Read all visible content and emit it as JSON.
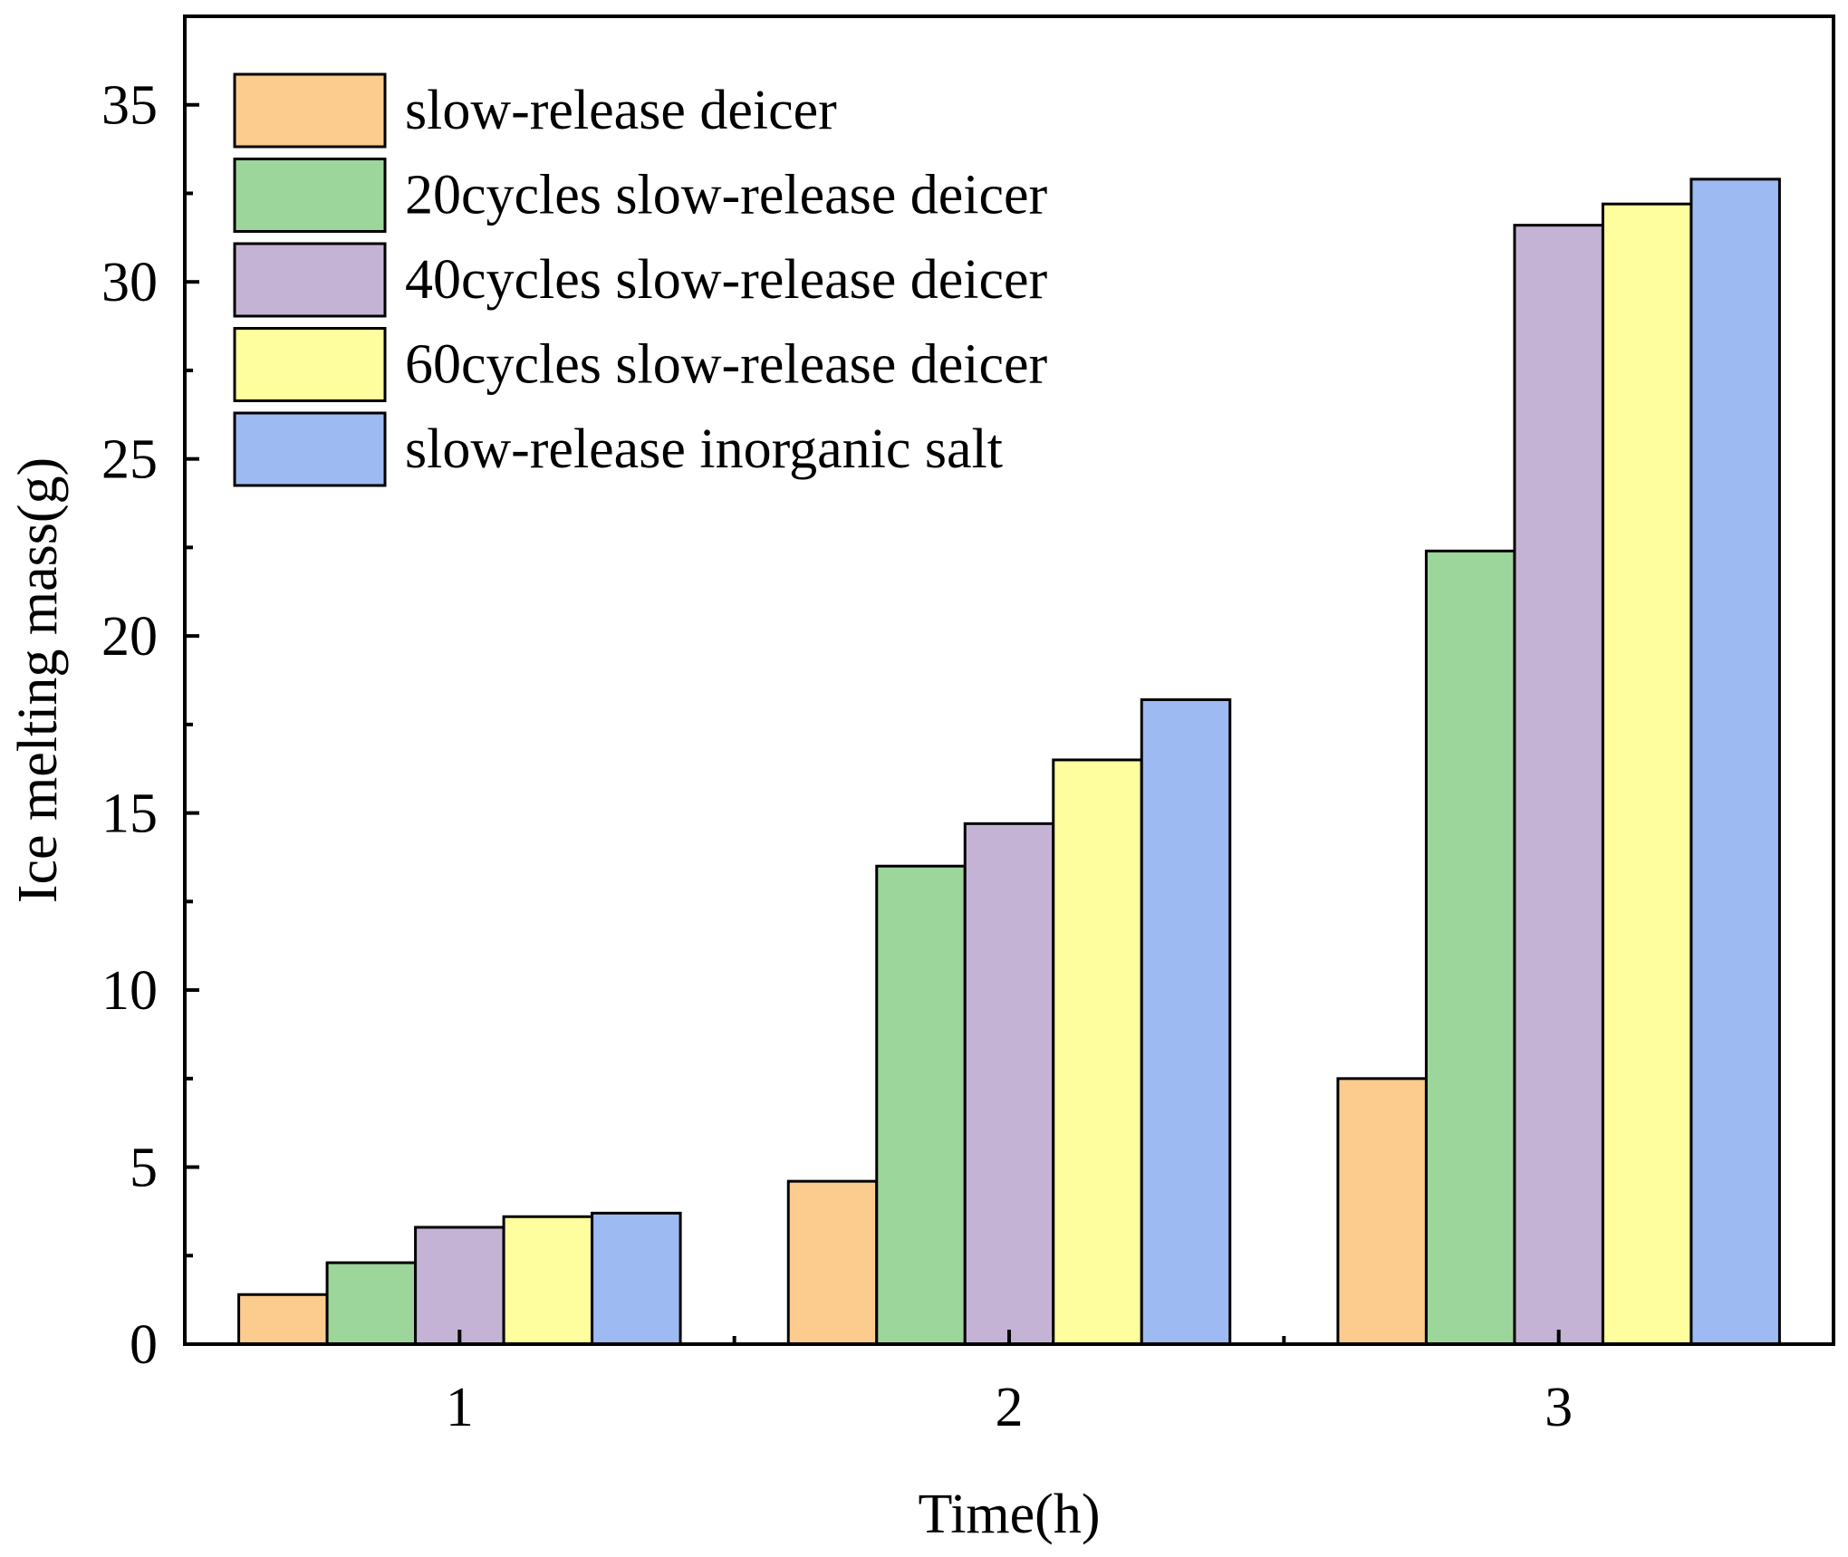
{
  "chart_data": {
    "type": "bar",
    "title": "",
    "xlabel": "Time(h)",
    "ylabel": "Ice melting mass(g)",
    "categories": [
      "1",
      "2",
      "3"
    ],
    "series": [
      {
        "name": "slow-release deicer",
        "color": "#FCCB8E",
        "values": [
          1.4,
          4.6,
          7.5
        ]
      },
      {
        "name": "20cycles slow-release deicer",
        "color": "#9CD69A",
        "values": [
          2.3,
          13.5,
          22.4
        ]
      },
      {
        "name": "40cycles slow-release deicer",
        "color": "#C5B3D6",
        "values": [
          3.3,
          14.7,
          31.6
        ]
      },
      {
        "name": "60cycles slow-release deicer",
        "color": "#FEFE9E",
        "values": [
          3.6,
          16.5,
          32.2
        ]
      },
      {
        "name": "slow-release inorganic salt",
        "color": "#9DBAF2",
        "values": [
          3.7,
          18.2,
          32.9
        ]
      }
    ],
    "ylim": [
      0,
      37.5
    ],
    "yticks": [
      0,
      5,
      10,
      15,
      20,
      25,
      30,
      35
    ],
    "legend_position": "top-left",
    "grid": false
  }
}
